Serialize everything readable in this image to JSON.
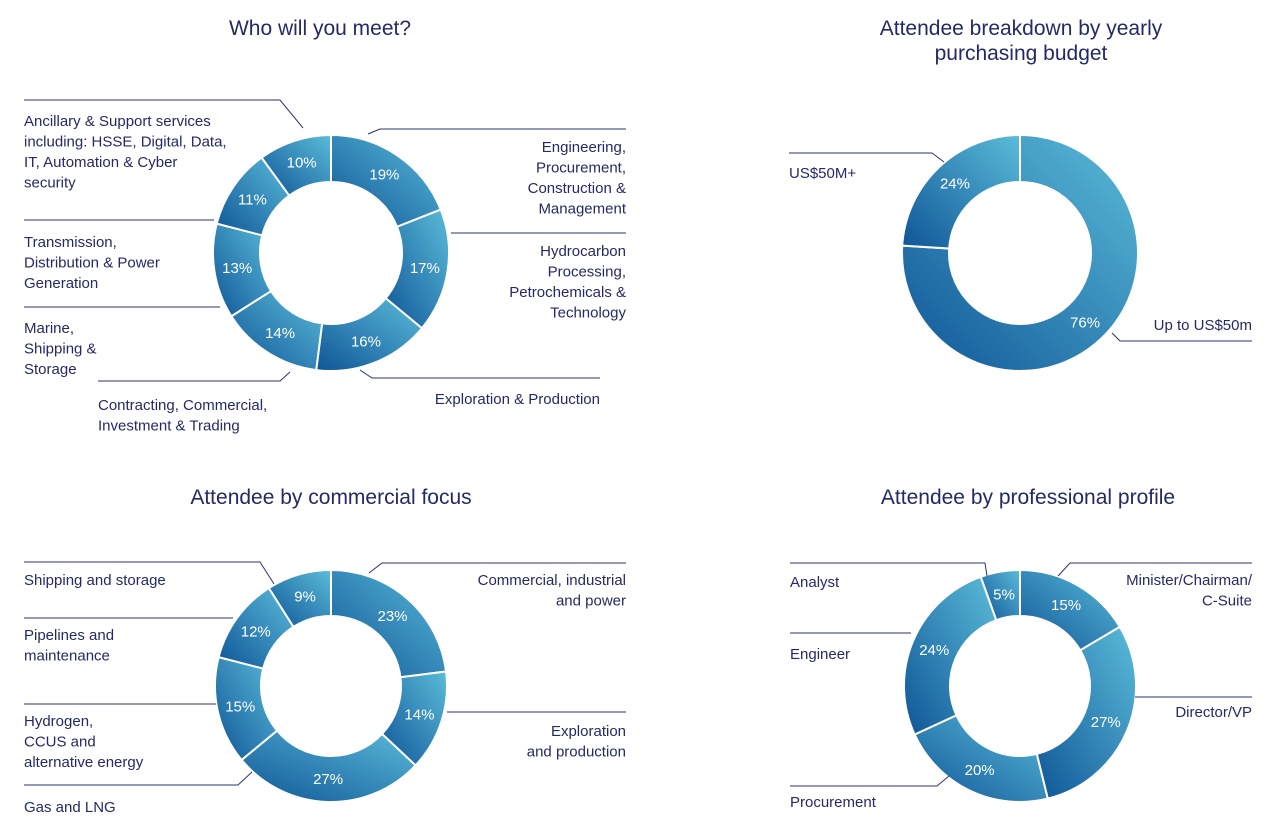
{
  "colors": {
    "text": "#232a66",
    "leader": "#2b3270",
    "slice_light": "#5bbcd9",
    "slice_dark": "#0f5597"
  },
  "chart_data": [
    {
      "type": "pie",
      "title": "Who will you meet?",
      "categories": [
        "Engineering, Procurement, Construction & Management",
        "Hydrocarbon Processing, Petrochemicals & Technology",
        "Exploration & Production",
        "Contracting, Commercial, Investment & Trading",
        "Marine, Shipping & Storage",
        "Transmission, Distribution & Power Generation",
        "Ancillary & Support services including: HSSE, Digital, Data, IT, Automation & Cyber security"
      ],
      "label_lines": [
        [
          "Engineering,",
          "Procurement,",
          "Construction &",
          "Management"
        ],
        [
          "Hydrocarbon",
          "Processing,",
          "Petrochemicals &",
          "Technology"
        ],
        [
          "Exploration & Production"
        ],
        [
          "Contracting, Commercial,",
          "Investment & Trading"
        ],
        [
          "Marine,",
          "Shipping &",
          "Storage"
        ],
        [
          "Transmission,",
          "Distribution & Power",
          "Generation"
        ],
        [
          "Ancillary & Support services",
          "including: HSSE, Digital, Data,",
          "IT, Automation & Cyber",
          "security"
        ]
      ],
      "values": [
        19,
        17,
        16,
        14,
        13,
        11,
        10
      ],
      "value_labels": [
        "19%",
        "17%",
        "16%",
        "14%",
        "13%",
        "11%",
        "10%"
      ],
      "donut": true
    },
    {
      "type": "pie",
      "title": "Attendee breakdown by yearly purchasing budget",
      "title_lines": [
        "Attendee breakdown by yearly",
        "purchasing budget"
      ],
      "categories": [
        "Up to US$50m",
        "US$50M+"
      ],
      "label_lines": [
        [
          "Up to US$50m"
        ],
        [
          "US$50M+"
        ]
      ],
      "values": [
        76,
        24
      ],
      "value_labels": [
        "76%",
        "24%"
      ],
      "donut": true
    },
    {
      "type": "pie",
      "title": "Attendee by commercial focus",
      "categories": [
        "Commercial, industrial and power",
        "Exploration and production",
        "Gas and LNG",
        "Hydrogen, CCUS and alternative energy",
        "Pipelines and maintenance",
        "Shipping and storage"
      ],
      "label_lines": [
        [
          "Commercial, industrial",
          "and power"
        ],
        [
          "Exploration",
          "and production"
        ],
        [
          "Gas and LNG"
        ],
        [
          "Hydrogen,",
          "CCUS and",
          "alternative energy"
        ],
        [
          "Pipelines and",
          "maintenance"
        ],
        [
          "Shipping and storage"
        ]
      ],
      "values": [
        23,
        14,
        27,
        15,
        12,
        9
      ],
      "value_labels": [
        "23%",
        "14%",
        "27%",
        "15%",
        "12%",
        "9%"
      ],
      "donut": true
    },
    {
      "type": "pie",
      "title": "Attendee by professional profile",
      "categories": [
        "Minister/Chairman/C-Suite",
        "Director/VP",
        "Procurement",
        "Engineer",
        "Analyst"
      ],
      "label_lines": [
        [
          "Minister/Chairman/",
          "C-Suite"
        ],
        [
          "Director/VP"
        ],
        [
          "Procurement"
        ],
        [
          "Engineer"
        ],
        [
          "Analyst"
        ]
      ],
      "values": [
        15,
        27,
        20,
        24,
        5
      ],
      "value_labels": [
        "15%",
        "27%",
        "20%",
        "24%",
        "5%"
      ],
      "donut": true
    }
  ]
}
